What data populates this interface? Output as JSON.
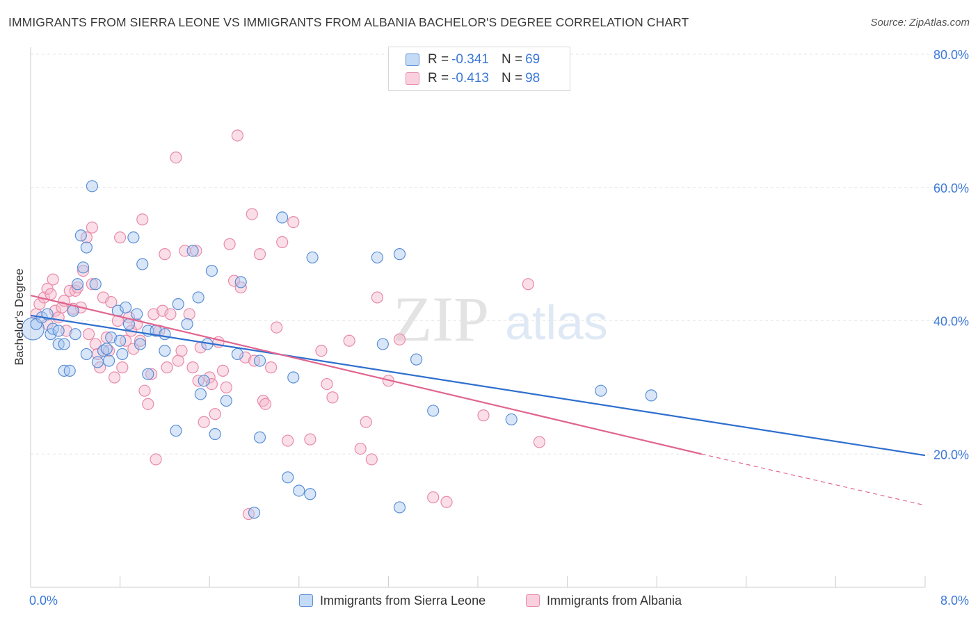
{
  "title": "IMMIGRANTS FROM SIERRA LEONE VS IMMIGRANTS FROM ALBANIA BACHELOR'S DEGREE CORRELATION CHART",
  "source": "Source: ZipAtlas.com",
  "watermark": {
    "zip": "ZIP",
    "atlas": "atlas"
  },
  "colors": {
    "blue_fill": "#a8c8f0",
    "blue_stroke": "#5b8fd6",
    "blue_line": "#2f6fce",
    "pink_fill": "#f5b8cc",
    "pink_stroke": "#e88aa8",
    "pink_line": "#e0658f",
    "axis_label": "#3c78d8",
    "grid": "#e6e6e6"
  },
  "legend": {
    "r_label": "R =",
    "n_label": "N =",
    "rows": [
      {
        "r": "-0.341",
        "n": "69"
      },
      {
        "r": "-0.413",
        "n": "98"
      }
    ]
  },
  "chart_data": {
    "type": "scatter",
    "xlabel": "",
    "ylabel": "Bachelor's Degree",
    "xlim": [
      0,
      8
    ],
    "ylim": [
      0,
      80
    ],
    "x_tick_labels": [
      "0.0%",
      "8.0%"
    ],
    "y_tick_labels": [
      "20.0%",
      "40.0%",
      "60.0%",
      "80.0%"
    ],
    "y_ticks": [
      20,
      40,
      60,
      80
    ],
    "grid": true,
    "legend_position": "top-center",
    "series": [
      {
        "name": "Immigrants from Sierra Leone",
        "color": "blue",
        "trend": {
          "x0": 0.0,
          "y0": 40.8,
          "x1": 8.0,
          "y1": 19.8
        },
        "points": [
          [
            0.05,
            39.5
          ],
          [
            0.1,
            40.5
          ],
          [
            0.15,
            41.0
          ],
          [
            0.18,
            38.0
          ],
          [
            0.2,
            38.8
          ],
          [
            0.25,
            38.5
          ],
          [
            0.25,
            36.5
          ],
          [
            0.3,
            32.5
          ],
          [
            0.3,
            36.5
          ],
          [
            0.35,
            32.5
          ],
          [
            0.38,
            41.5
          ],
          [
            0.4,
            38.0
          ],
          [
            0.42,
            45.5
          ],
          [
            0.45,
            52.8
          ],
          [
            0.47,
            48.0
          ],
          [
            0.5,
            51.0
          ],
          [
            0.5,
            35.0
          ],
          [
            0.55,
            60.2
          ],
          [
            0.58,
            45.5
          ],
          [
            0.6,
            33.8
          ],
          [
            0.65,
            35.5
          ],
          [
            0.68,
            35.8
          ],
          [
            0.7,
            34.0
          ],
          [
            0.72,
            37.5
          ],
          [
            0.78,
            41.5
          ],
          [
            0.8,
            37.0
          ],
          [
            0.82,
            35.0
          ],
          [
            0.85,
            42.0
          ],
          [
            0.88,
            39.5
          ],
          [
            0.92,
            52.5
          ],
          [
            0.95,
            41.0
          ],
          [
            0.98,
            36.5
          ],
          [
            1.0,
            48.5
          ],
          [
            1.05,
            32.0
          ],
          [
            1.05,
            38.5
          ],
          [
            1.12,
            38.5
          ],
          [
            1.2,
            35.5
          ],
          [
            1.2,
            38.0
          ],
          [
            1.3,
            23.5
          ],
          [
            1.32,
            42.5
          ],
          [
            1.4,
            39.5
          ],
          [
            1.45,
            50.5
          ],
          [
            1.5,
            43.5
          ],
          [
            1.52,
            29.0
          ],
          [
            1.55,
            31.0
          ],
          [
            1.58,
            36.5
          ],
          [
            1.62,
            47.5
          ],
          [
            1.65,
            23.0
          ],
          [
            1.75,
            28.0
          ],
          [
            1.85,
            35.0
          ],
          [
            1.88,
            45.8
          ],
          [
            2.05,
            34.0
          ],
          [
            2.05,
            22.5
          ],
          [
            2.25,
            55.5
          ],
          [
            2.3,
            16.5
          ],
          [
            2.35,
            31.5
          ],
          [
            2.4,
            14.5
          ],
          [
            2.5,
            14.0
          ],
          [
            2.52,
            49.5
          ],
          [
            3.1,
            49.5
          ],
          [
            3.15,
            36.5
          ],
          [
            3.3,
            50.0
          ],
          [
            3.45,
            34.2
          ],
          [
            3.6,
            26.5
          ],
          [
            4.3,
            25.2
          ],
          [
            5.1,
            29.5
          ],
          [
            5.55,
            28.8
          ],
          [
            2.0,
            11.2
          ],
          [
            3.3,
            12.0
          ]
        ]
      },
      {
        "name": "Immigrants from Albania",
        "color": "pink",
        "trend": {
          "x0": 0.0,
          "y0": 43.8,
          "x1": 6.0,
          "y1": 20.0,
          "dash_to_x": 8.0,
          "dash_to_y": 12.3
        },
        "points": [
          [
            0.05,
            41.0
          ],
          [
            0.08,
            42.5
          ],
          [
            0.12,
            43.5
          ],
          [
            0.15,
            44.8
          ],
          [
            0.18,
            44.0
          ],
          [
            0.2,
            46.2
          ],
          [
            0.22,
            41.5
          ],
          [
            0.25,
            40.5
          ],
          [
            0.28,
            42.0
          ],
          [
            0.3,
            43.0
          ],
          [
            0.32,
            38.5
          ],
          [
            0.35,
            44.5
          ],
          [
            0.38,
            41.8
          ],
          [
            0.4,
            44.5
          ],
          [
            0.42,
            45.0
          ],
          [
            0.45,
            42.0
          ],
          [
            0.47,
            47.5
          ],
          [
            0.5,
            52.5
          ],
          [
            0.52,
            38.0
          ],
          [
            0.55,
            54.0
          ],
          [
            0.55,
            45.5
          ],
          [
            0.58,
            36.5
          ],
          [
            0.6,
            35.0
          ],
          [
            0.62,
            33.0
          ],
          [
            0.65,
            43.5
          ],
          [
            0.68,
            37.5
          ],
          [
            0.7,
            35.5
          ],
          [
            0.72,
            42.8
          ],
          [
            0.75,
            31.5
          ],
          [
            0.78,
            40.0
          ],
          [
            0.8,
            52.5
          ],
          [
            0.82,
            33.0
          ],
          [
            0.85,
            37.0
          ],
          [
            0.88,
            40.5
          ],
          [
            0.9,
            38.5
          ],
          [
            0.92,
            35.8
          ],
          [
            0.95,
            39.5
          ],
          [
            0.98,
            37.0
          ],
          [
            1.0,
            55.2
          ],
          [
            1.02,
            29.5
          ],
          [
            1.05,
            27.5
          ],
          [
            1.08,
            32.0
          ],
          [
            1.1,
            41.0
          ],
          [
            1.12,
            19.2
          ],
          [
            1.15,
            38.5
          ],
          [
            1.18,
            41.5
          ],
          [
            1.2,
            50.0
          ],
          [
            1.22,
            33.0
          ],
          [
            1.25,
            41.0
          ],
          [
            1.3,
            64.5
          ],
          [
            1.32,
            34.0
          ],
          [
            1.35,
            35.5
          ],
          [
            1.38,
            50.5
          ],
          [
            1.42,
            41.0
          ],
          [
            1.45,
            33.0
          ],
          [
            1.48,
            50.5
          ],
          [
            1.5,
            31.0
          ],
          [
            1.52,
            36.0
          ],
          [
            1.55,
            24.8
          ],
          [
            1.6,
            31.5
          ],
          [
            1.62,
            30.5
          ],
          [
            1.65,
            26.0
          ],
          [
            1.68,
            36.8
          ],
          [
            1.72,
            32.5
          ],
          [
            1.75,
            30.0
          ],
          [
            1.78,
            51.5
          ],
          [
            1.82,
            46.0
          ],
          [
            1.88,
            45.0
          ],
          [
            1.92,
            34.5
          ],
          [
            1.98,
            56.0
          ],
          [
            2.0,
            34.0
          ],
          [
            2.05,
            50.0
          ],
          [
            2.08,
            28.0
          ],
          [
            2.1,
            27.5
          ],
          [
            2.15,
            33.0
          ],
          [
            2.2,
            39.0
          ],
          [
            2.25,
            51.8
          ],
          [
            2.3,
            22.0
          ],
          [
            2.35,
            54.8
          ],
          [
            2.5,
            22.2
          ],
          [
            2.6,
            35.5
          ],
          [
            2.65,
            30.5
          ],
          [
            2.7,
            28.5
          ],
          [
            2.85,
            37.0
          ],
          [
            2.95,
            20.8
          ],
          [
            3.0,
            24.8
          ],
          [
            3.05,
            19.2
          ],
          [
            3.1,
            43.5
          ],
          [
            3.2,
            31.0
          ],
          [
            3.3,
            37.2
          ],
          [
            3.6,
            13.5
          ],
          [
            3.72,
            12.8
          ],
          [
            4.05,
            25.8
          ],
          [
            4.45,
            45.5
          ],
          [
            4.55,
            21.8
          ],
          [
            1.95,
            11.0
          ],
          [
            1.85,
            67.8
          ],
          [
            0.15,
            39.5
          ]
        ]
      }
    ]
  },
  "bottom_legend": [
    "Immigrants from Sierra Leone",
    "Immigrants from Albania"
  ]
}
